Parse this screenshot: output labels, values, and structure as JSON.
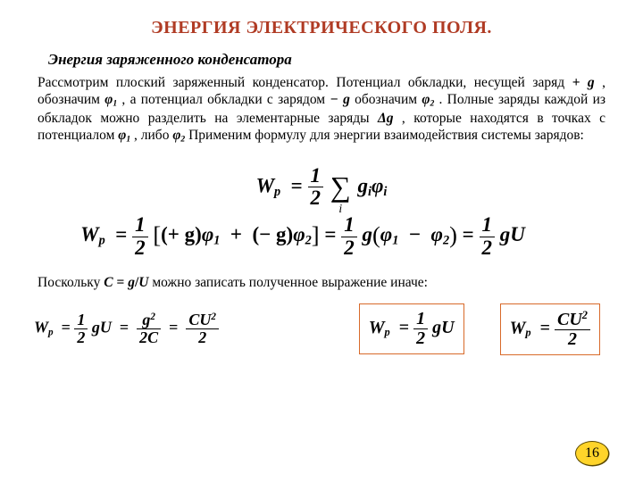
{
  "title": "ЭНЕРГИЯ  ЭЛЕКТРИЧЕСКОГО ПОЛЯ.",
  "subtitle": "Энергия  заряженного конденсатора",
  "paragraph": {
    "t1": "Рассмотрим плоский заряженный конденсатор. Потенциал обкладки, несущей заряд ",
    "sym_plus_g": "+ g",
    "t2": " , обозначим ",
    "sym_phi1": "φ",
    "sub1": "1",
    "t3": " , а потенциал обкладки с зарядом ",
    "sym_minus_g": "− g",
    "t4": " обозначим ",
    "sym_phi2": "φ",
    "sub2": "2",
    "t5": " . Полные заряды  каждой из обкладок можно разделить на элементарные заряды ",
    "sym_dg": "Δg",
    "t6": ", которые находятся в точках с потенциалом ",
    "sym_phi1b": "φ",
    "t7": ", либо",
    "sym_phi2b": "φ",
    "t8": " Применим формулу для энергии взаимодействия системы зарядов:"
  },
  "formula1": {
    "Wp": "W",
    "p": "p",
    "eq": "=",
    "half_num": "1",
    "half_den": "2",
    "sum": "∑",
    "sum_idx": "i",
    "gi": "g",
    "i": "i",
    "phii": "φ"
  },
  "formula2": {
    "Wp": "W",
    "p": "p",
    "eq": "=",
    "half_num": "1",
    "half_den": "2",
    "lbr": "[",
    "rbr": "]",
    "pg": "(+ g)",
    "phi1": "φ",
    "s1": "1",
    "plus": "+",
    "mg": "(− g)",
    "phi2": "φ",
    "s2": "2",
    "g": "g",
    "lpar": "(",
    "rpar": ")",
    "minus": "−",
    "U": "U"
  },
  "para2": {
    "t1": "Поскольку ",
    "C": "C",
    "eq": "=",
    "g": "g",
    "slash": "/",
    "U": "U",
    "t2": " можно записать  полученное выражение иначе:"
  },
  "chain": {
    "Wp": "W",
    "p": "p",
    "eq": "=",
    "half_num": "1",
    "half_den": "2",
    "g": "g",
    "U": "U",
    "g2_num_g": "g",
    "g2_num_sup": "2",
    "g2_den": "2C",
    "cu2_num_C": "C",
    "cu2_num_U": "U",
    "cu2_num_sup": "2",
    "cu2_den": "2"
  },
  "box1": {
    "Wp": "W",
    "p": "p",
    "eq": "=",
    "half_num": "1",
    "half_den": "2",
    "g": "g",
    "U": "U"
  },
  "box2": {
    "Wp": "W",
    "p": "p",
    "eq": "=",
    "num_C": "C",
    "num_U": "U",
    "num_sup": "2",
    "den": "2"
  },
  "page_number": "16",
  "colors": {
    "title": "#b03b24",
    "box_border": "#d86a2a",
    "badge_fill": "#ffd42a",
    "badge_border": "#5c4a00"
  }
}
